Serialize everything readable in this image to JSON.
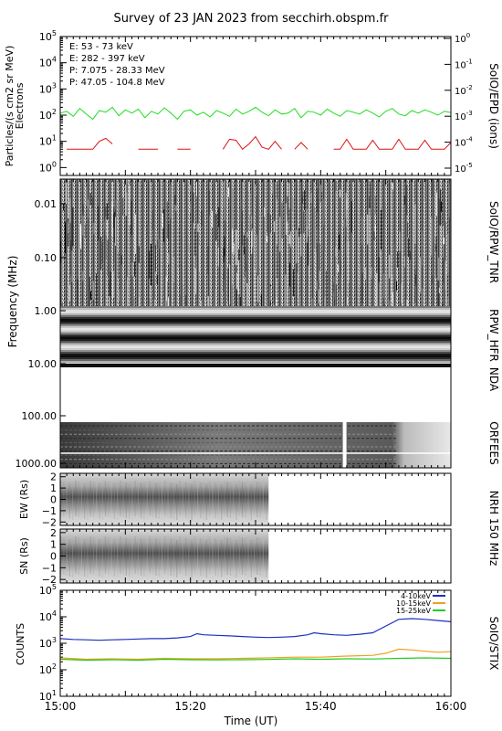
{
  "title": "Survey of 23 JAN 2023 from secchirh.obspm.fr",
  "xaxis": {
    "label": "Time (UT)",
    "ticks": [
      "15:00",
      "15:20",
      "15:40",
      "16:00"
    ]
  },
  "colors": {
    "electrons_low": "#22dd22",
    "electrons_high": "#dd1111",
    "protons_low": "#000000",
    "protons_high": "#1133cc",
    "stix_4_10": "#1f2fbf",
    "stix_10_15": "#f0a020",
    "stix_15_25": "#22cc22"
  },
  "chart_data": [
    {
      "type": "line",
      "panel": "SoIO/EPD (ions)",
      "right_label": "SoIO/EPD (ions)",
      "ylabel_lines": [
        "Particles/(s cm2 sr MeV)",
        "Electrons"
      ],
      "ylim": [
        0.5,
        100000
      ],
      "y_log": true,
      "yticks": [
        "10^0",
        "10^1",
        "10^2",
        "10^3",
        "10^4",
        "10^5"
      ],
      "right_ticks": [
        "10^-5",
        "10^-4",
        "10^-3",
        "10^-2",
        "10^-1",
        "10^0"
      ],
      "x_range_min": [
        0,
        60
      ],
      "legend_placement": "top-left",
      "legend": [
        {
          "label": "E: 53 - 73 keV",
          "color": "#22dd22"
        },
        {
          "label": "E: 282 - 397 keV",
          "color": "#dd1111"
        },
        {
          "label": "P: 7.075 - 28.33 MeV",
          "color": "#000000"
        },
        {
          "label": "P: 47.05 - 104.8 MeV",
          "color": "#1133cc"
        }
      ],
      "series": [
        {
          "name": "E: 53 - 73 keV",
          "x": [
            0,
            1,
            2,
            3,
            4,
            5,
            6,
            7,
            8,
            9,
            10,
            11,
            12,
            13,
            14,
            15,
            16,
            17,
            18,
            19,
            20,
            21,
            22,
            23,
            24,
            25,
            26,
            27,
            28,
            29,
            30,
            31,
            32,
            33,
            34,
            35,
            36,
            37,
            38,
            39,
            40,
            41,
            42,
            43,
            44,
            45,
            46,
            47,
            48,
            49,
            50,
            51,
            52,
            53,
            54,
            55,
            56,
            57,
            58,
            59,
            60
          ],
          "y": [
            120,
            140,
            90,
            180,
            110,
            70,
            150,
            130,
            200,
            95,
            160,
            120,
            170,
            80,
            140,
            110,
            190,
            120,
            70,
            140,
            160,
            100,
            130,
            85,
            150,
            120,
            90,
            170,
            110,
            140,
            200,
            130,
            95,
            160,
            110,
            120,
            180,
            80,
            140,
            130,
            100,
            170,
            120,
            90,
            150,
            130,
            110,
            160,
            120,
            85,
            140,
            180,
            110,
            95,
            150,
            120,
            160,
            130,
            100,
            140,
            125
          ]
        },
        {
          "name": "E: 282 - 397 keV",
          "x": [
            1,
            2,
            3,
            4,
            5,
            6,
            7,
            8,
            12,
            13,
            14,
            15,
            18,
            19,
            20,
            25,
            26,
            27,
            28,
            29,
            30,
            31,
            32,
            33,
            34,
            36,
            37,
            38,
            42,
            43,
            44,
            45,
            46,
            47,
            48,
            49,
            50,
            51,
            52,
            53,
            54,
            55,
            56,
            57,
            58,
            59,
            60
          ],
          "y": [
            5,
            5,
            5,
            5,
            5,
            10,
            13,
            8,
            5,
            5,
            5,
            5,
            5,
            5,
            5,
            5,
            12,
            11,
            5,
            8,
            15,
            6,
            5,
            10,
            5,
            5,
            9,
            5,
            5,
            5,
            12,
            5,
            5,
            5,
            11,
            5,
            5,
            5,
            12,
            5,
            5,
            5,
            11,
            5,
            5,
            5,
            9
          ]
        }
      ]
    },
    {
      "type": "heatmap",
      "panel": "SoIO/RPW_TNR",
      "right_label": "SoIO/RPW_TNR",
      "ylabel": "Frequency (MHz)",
      "y_log": true,
      "ylim": [
        0.004,
        0.9
      ],
      "yticks": [
        "0.01",
        "0.10"
      ]
    },
    {
      "type": "heatmap",
      "panel": "RPW_HFR",
      "right_label": "RPW_HFR",
      "ylim": [
        0.9,
        10
      ],
      "yticks": [
        "1.00",
        "10.00"
      ]
    },
    {
      "type": "heatmap",
      "panel": "NDA",
      "right_label": "NDA"
    },
    {
      "type": "heatmap",
      "panel": "ORFEES",
      "right_label": "ORFEES",
      "ylim": [
        75,
        1000
      ],
      "yticks": [
        "100.00",
        "1000.00"
      ]
    },
    {
      "type": "heatmap",
      "panel": "NRH 150 MHz (EW)",
      "right_label": "NRH 150 MHz",
      "ylabel": "EW (Rs)",
      "ylim": [
        -2.3,
        2.3
      ],
      "yticks": [
        "2",
        "1",
        "0",
        "-1",
        "-2"
      ],
      "data_end_min": 32
    },
    {
      "type": "heatmap",
      "panel": "NRH 150 MHz (SN)",
      "ylabel": "SN (Rs)",
      "ylim": [
        -2.3,
        2.3
      ],
      "yticks": [
        "2",
        "1",
        "0",
        "-1",
        "-2"
      ],
      "data_end_min": 32
    },
    {
      "type": "line",
      "panel": "SoIO/STIX",
      "right_label": "SoIO/STIX",
      "ylabel": "COUNTS",
      "y_log": true,
      "ylim": [
        10,
        100000
      ],
      "yticks": [
        "10^1",
        "10^2",
        "10^3",
        "10^4",
        "10^5"
      ],
      "x_range_min": [
        0,
        60
      ],
      "legend_placement": "top-right",
      "series": [
        {
          "name": "4-10keV",
          "x": [
            0,
            2,
            4,
            6,
            8,
            10,
            12,
            14,
            16,
            18,
            20,
            21,
            22,
            24,
            26,
            28,
            30,
            32,
            34,
            36,
            38,
            39,
            40,
            42,
            44,
            46,
            48,
            50,
            52,
            54,
            56,
            58,
            60
          ],
          "y": [
            1500,
            1400,
            1350,
            1300,
            1350,
            1400,
            1450,
            1500,
            1500,
            1600,
            1800,
            2300,
            2100,
            2000,
            1900,
            1800,
            1700,
            1650,
            1700,
            1800,
            2100,
            2500,
            2300,
            2100,
            2000,
            2200,
            2500,
            4500,
            8000,
            8500,
            8000,
            7200,
            6500
          ]
        },
        {
          "name": "10-15keV",
          "x": [
            0,
            4,
            8,
            12,
            16,
            20,
            24,
            28,
            32,
            36,
            40,
            44,
            48,
            50,
            52,
            54,
            56,
            58,
            60
          ],
          "y": [
            280,
            250,
            260,
            250,
            270,
            260,
            260,
            270,
            280,
            300,
            300,
            330,
            350,
            420,
            600,
            560,
            500,
            460,
            480
          ]
        },
        {
          "name": "15-25keV",
          "x": [
            0,
            4,
            8,
            12,
            16,
            20,
            24,
            28,
            32,
            36,
            40,
            44,
            48,
            52,
            56,
            60
          ],
          "y": [
            250,
            230,
            240,
            230,
            250,
            240,
            235,
            240,
            245,
            260,
            250,
            260,
            255,
            270,
            280,
            270
          ]
        }
      ]
    }
  ]
}
